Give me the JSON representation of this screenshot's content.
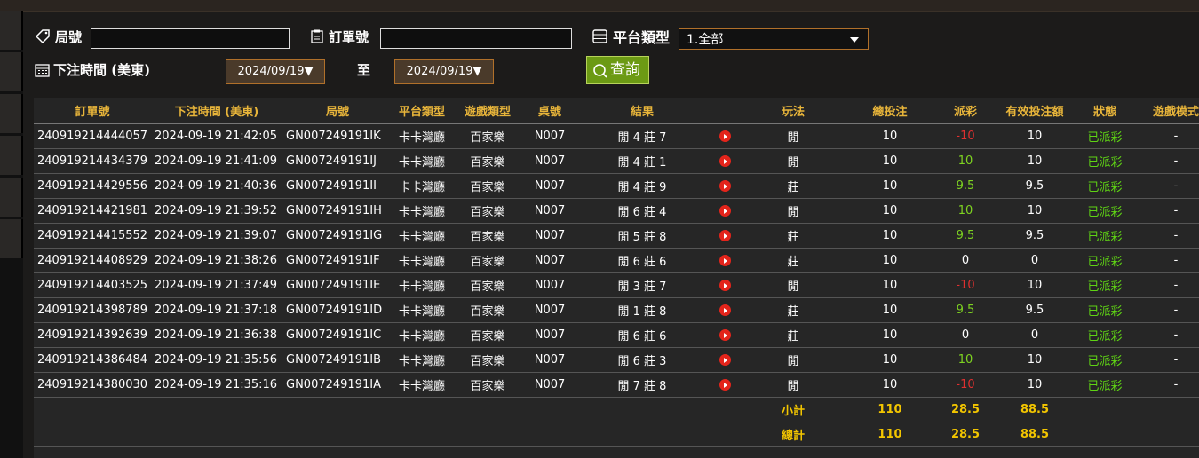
{
  "filters": {
    "round_label": "局號",
    "order_label": "訂單號",
    "platform_label": "平台類型",
    "platform_value": "1.全部",
    "time_label": "下注時間 (美東)",
    "date_from": "2024/09/19▼",
    "to_label": "至",
    "date_to": "2024/09/19▼",
    "search_button": "查詢"
  },
  "table": {
    "headers": [
      "訂單號",
      "下注時間 (美東)",
      "局號",
      "平台類型",
      "遊戲類型",
      "桌號",
      "結果",
      "玩法",
      "總投注",
      "派彩",
      "有效投注額",
      "狀態",
      "遊戲模式"
    ],
    "rows": [
      [
        "240919214444057",
        "2024-09-19 21:42:05",
        "GN007249191IK",
        "卡卡灣廳",
        "百家樂",
        "N007",
        "閒 4 莊 7",
        "閒",
        10,
        -10,
        10,
        "已派彩",
        "-"
      ],
      [
        "240919214434379",
        "2024-09-19 21:41:09",
        "GN007249191IJ",
        "卡卡灣廳",
        "百家樂",
        "N007",
        "閒 4 莊 1",
        "閒",
        10,
        10,
        10,
        "已派彩",
        "-"
      ],
      [
        "240919214429556",
        "2024-09-19 21:40:36",
        "GN007249191II",
        "卡卡灣廳",
        "百家樂",
        "N007",
        "閒 4 莊 9",
        "莊",
        10,
        9.5,
        9.5,
        "已派彩",
        "-"
      ],
      [
        "240919214421981",
        "2024-09-19 21:39:52",
        "GN007249191IH",
        "卡卡灣廳",
        "百家樂",
        "N007",
        "閒 6 莊 4",
        "閒",
        10,
        10,
        10,
        "已派彩",
        "-"
      ],
      [
        "240919214415552",
        "2024-09-19 21:39:07",
        "GN007249191IG",
        "卡卡灣廳",
        "百家樂",
        "N007",
        "閒 5 莊 8",
        "莊",
        10,
        9.5,
        9.5,
        "已派彩",
        "-"
      ],
      [
        "240919214408929",
        "2024-09-19 21:38:26",
        "GN007249191IF",
        "卡卡灣廳",
        "百家樂",
        "N007",
        "閒 6 莊 6",
        "莊",
        10,
        0,
        0,
        "已派彩",
        "-"
      ],
      [
        "240919214403525",
        "2024-09-19 21:37:49",
        "GN007249191IE",
        "卡卡灣廳",
        "百家樂",
        "N007",
        "閒 3 莊 7",
        "閒",
        10,
        -10,
        10,
        "已派彩",
        "-"
      ],
      [
        "240919214398789",
        "2024-09-19 21:37:18",
        "GN007249191ID",
        "卡卡灣廳",
        "百家樂",
        "N007",
        "閒 1 莊 8",
        "莊",
        10,
        9.5,
        9.5,
        "已派彩",
        "-"
      ],
      [
        "240919214392639",
        "2024-09-19 21:36:38",
        "GN007249191IC",
        "卡卡灣廳",
        "百家樂",
        "N007",
        "閒 6 莊 6",
        "莊",
        10,
        0,
        0,
        "已派彩",
        "-"
      ],
      [
        "240919214386484",
        "2024-09-19 21:35:56",
        "GN007249191IB",
        "卡卡灣廳",
        "百家樂",
        "N007",
        "閒 6 莊 3",
        "閒",
        10,
        10,
        10,
        "已派彩",
        "-"
      ],
      [
        "240919214380030",
        "2024-09-19 21:35:16",
        "GN007249191IA",
        "卡卡灣廳",
        "百家樂",
        "N007",
        "閒 7 莊 8",
        "閒",
        10,
        -10,
        10,
        "已派彩",
        "-"
      ]
    ],
    "subtotal": {
      "label": "小計",
      "total_bet": 110,
      "payout": 28.5,
      "valid_bet": 88.5
    },
    "total": {
      "label": "總計",
      "total_bet": 110,
      "payout": 28.5,
      "valid_bet": 88.5
    }
  }
}
